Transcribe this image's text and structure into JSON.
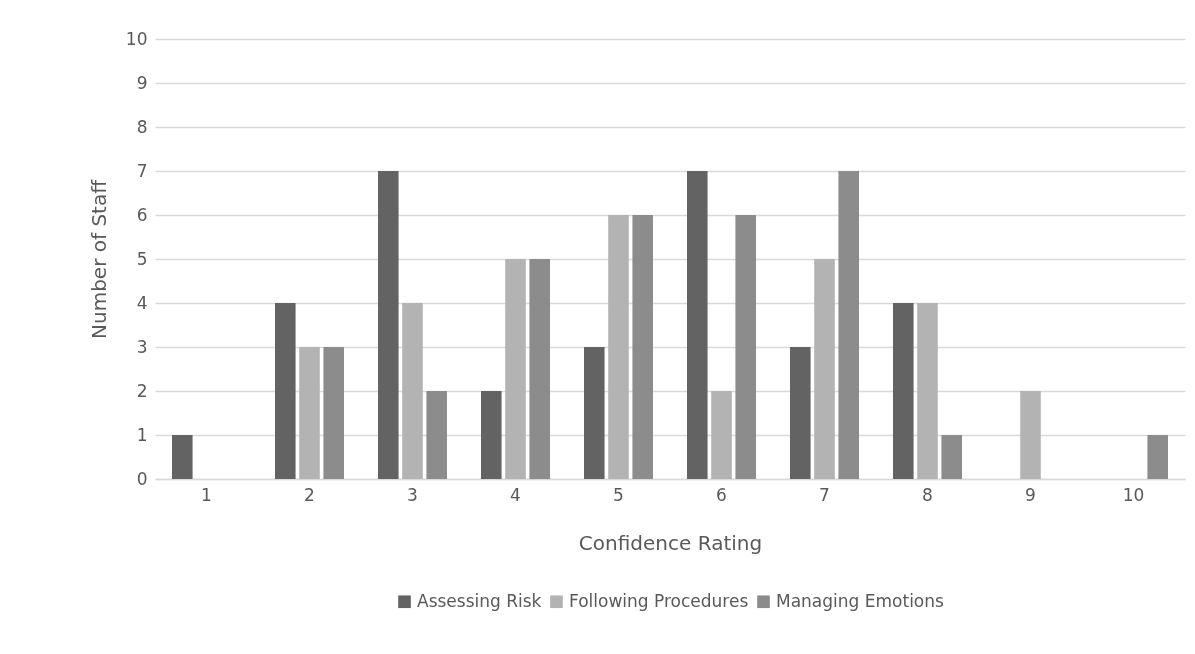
{
  "chart_data": {
    "type": "bar",
    "xlabel": "Confidence Rating",
    "ylabel": "Number of Staff",
    "categories": [
      "1",
      "2",
      "3",
      "4",
      "5",
      "6",
      "7",
      "8",
      "9",
      "10"
    ],
    "series": [
      {
        "name": "Assessing Risk",
        "color": "#636363",
        "values": [
          1,
          4,
          7,
          2,
          3,
          7,
          3,
          4,
          0,
          0
        ]
      },
      {
        "name": "Following Procedures",
        "color": "#b3b3b3",
        "values": [
          0,
          3,
          4,
          5,
          6,
          2,
          5,
          4,
          2,
          0
        ]
      },
      {
        "name": "Managing Emotions",
        "color": "#8c8c8c",
        "values": [
          0,
          3,
          2,
          5,
          6,
          6,
          7,
          1,
          0,
          1
        ]
      }
    ],
    "ylim": [
      0,
      10
    ],
    "yticks": [
      0,
      1,
      2,
      3,
      4,
      5,
      6,
      7,
      8,
      9,
      10
    ],
    "grid": "y",
    "legend": "bottom"
  }
}
